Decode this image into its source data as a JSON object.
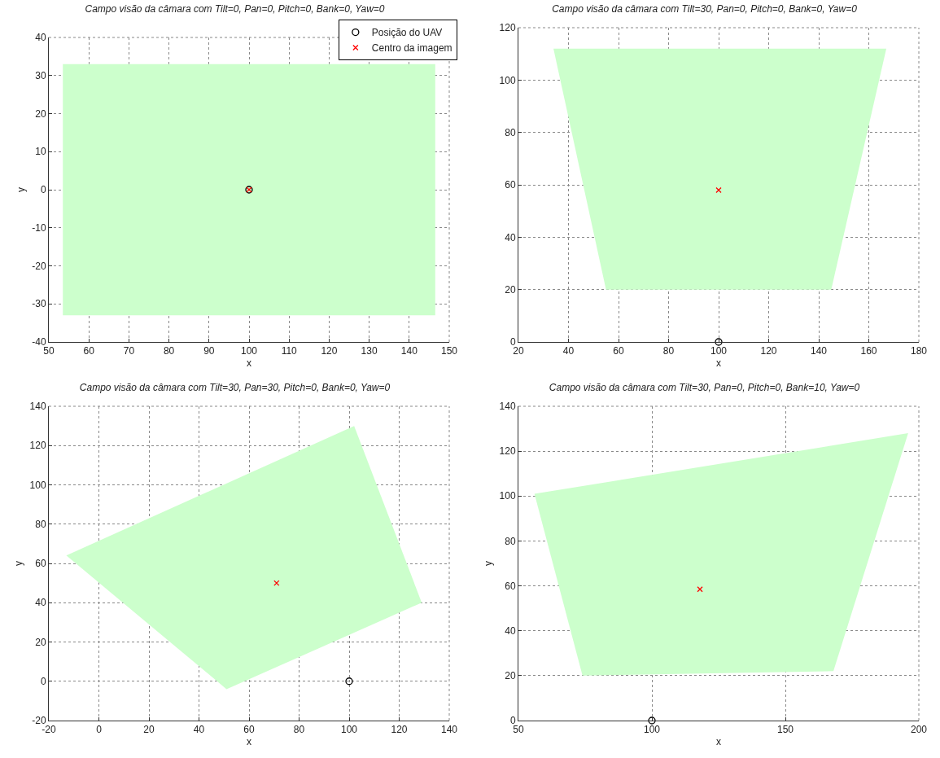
{
  "chart_data": [
    {
      "type": "area",
      "title": "Campo visão da câmara com Tilt=0, Pan=0, Pitch=0, Bank=0, Yaw=0",
      "xlabel": "x",
      "ylabel": "y",
      "xlim": [
        50,
        150
      ],
      "xticks": [
        50,
        60,
        70,
        80,
        90,
        100,
        110,
        120,
        130,
        140,
        150
      ],
      "ylim": [
        -40,
        40
      ],
      "yticks": [
        -40,
        -30,
        -20,
        -10,
        0,
        10,
        20,
        30,
        40
      ],
      "grid": true,
      "legend": "top right",
      "series": [
        {
          "color": "#ccffcc",
          "x": [
            53.5,
            146.5,
            146.5,
            53.5
          ],
          "values": [
            33,
            33,
            -33,
            -33
          ]
        },
        {
          "type": "scatter",
          "name": "Posição do UAV",
          "color": "#000000",
          "marker": "circle",
          "x": [
            100
          ],
          "values": [
            0
          ]
        },
        {
          "type": "scatter",
          "name": "Centro da imagem",
          "color": "#ff0000",
          "marker": "cross",
          "x": [
            100
          ],
          "values": [
            0
          ]
        }
      ]
    },
    {
      "type": "area",
      "title": "Campo visão da câmara com Tilt=30, Pan=0, Pitch=0, Bank=0, Yaw=0",
      "xlabel": "x",
      "xlim": [
        20,
        180
      ],
      "xticks": [
        20,
        40,
        60,
        80,
        100,
        120,
        140,
        160,
        180
      ],
      "ylim": [
        0,
        120
      ],
      "yticks": [
        0,
        20,
        40,
        60,
        80,
        100,
        120
      ],
      "grid": true,
      "series": [
        {
          "color": "#ccffcc",
          "x": [
            34,
            167,
            145,
            55
          ],
          "values": [
            112,
            112,
            20,
            20
          ]
        },
        {
          "type": "scatter",
          "color": "#000000",
          "marker": "circle",
          "x": [
            100
          ],
          "values": [
            0
          ]
        },
        {
          "type": "scatter",
          "color": "#ff0000",
          "marker": "cross",
          "x": [
            100
          ],
          "values": [
            58
          ]
        }
      ]
    },
    {
      "type": "area",
      "title": "Campo visão da câmara com Tilt=30, Pan=30, Pitch=0, Bank=0, Yaw=0",
      "xlabel": "x",
      "ylabel": "y",
      "xlim": [
        -20,
        140
      ],
      "xticks": [
        -20,
        0,
        20,
        40,
        60,
        80,
        100,
        120,
        140
      ],
      "ylim": [
        -20,
        140
      ],
      "yticks": [
        -20,
        0,
        20,
        40,
        60,
        80,
        100,
        120,
        140
      ],
      "grid": true,
      "series": [
        {
          "color": "#ccffcc",
          "x": [
            -13,
            102,
            129,
            51
          ],
          "values": [
            64,
            130,
            40,
            -4
          ]
        },
        {
          "type": "scatter",
          "color": "#000000",
          "marker": "circle",
          "x": [
            100
          ],
          "values": [
            0
          ]
        },
        {
          "type": "scatter",
          "color": "#ff0000",
          "marker": "cross",
          "x": [
            71
          ],
          "values": [
            50
          ]
        }
      ]
    },
    {
      "type": "area",
      "title": "Campo visão da câmara com Tilt=30, Pan=0, Pitch=0, Bank=10, Yaw=0",
      "xlabel": "x",
      "ylabel": "y",
      "xlim": [
        50,
        200
      ],
      "xticks": [
        50,
        100,
        150,
        200
      ],
      "ylim": [
        0,
        140
      ],
      "yticks": [
        0,
        20,
        40,
        60,
        80,
        100,
        120,
        140
      ],
      "grid": true,
      "series": [
        {
          "color": "#ccffcc",
          "x": [
            56,
            196,
            168,
            74
          ],
          "values": [
            101,
            128,
            22,
            20
          ]
        },
        {
          "type": "scatter",
          "color": "#000000",
          "marker": "circle",
          "x": [
            100
          ],
          "values": [
            0
          ]
        },
        {
          "type": "scatter",
          "color": "#ff0000",
          "marker": "cross",
          "x": [
            118
          ],
          "values": [
            58.5
          ]
        }
      ]
    }
  ]
}
